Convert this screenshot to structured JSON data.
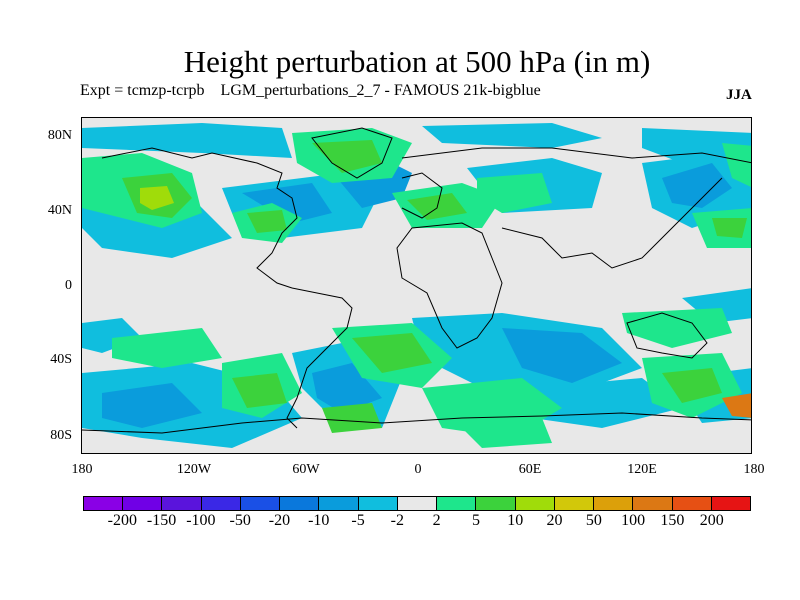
{
  "title": "Height perturbation at 500 hPa (in m)",
  "subtitle": "Expt = tcmzp-tcrpb    LGM_perturbations_2_7 - FAMOUS 21k-bigblue",
  "season": "JJA",
  "map": {
    "background": "#e8e8e8",
    "lat_labels": [
      "80N",
      "40N",
      "0",
      "40S",
      "80S"
    ],
    "lon_labels": [
      "180",
      "120W",
      "60W",
      "0",
      "60E",
      "120E",
      "180"
    ]
  },
  "colorbar": {
    "colors": [
      "#8a00e6",
      "#7000e6",
      "#5a14dc",
      "#3a28e6",
      "#1a50e6",
      "#0a78dc",
      "#0a9cdc",
      "#10bede",
      "#e8e8e8",
      "#1ee68c",
      "#3cd23c",
      "#a0dc0a",
      "#d2c80a",
      "#dca00a",
      "#dc7814",
      "#e65014",
      "#e61414"
    ],
    "labels": [
      "-200",
      "-150",
      "-100",
      "-50",
      "-20",
      "-10",
      "-5",
      "-2",
      "2",
      "5",
      "10",
      "20",
      "50",
      "100",
      "150",
      "200"
    ]
  }
}
